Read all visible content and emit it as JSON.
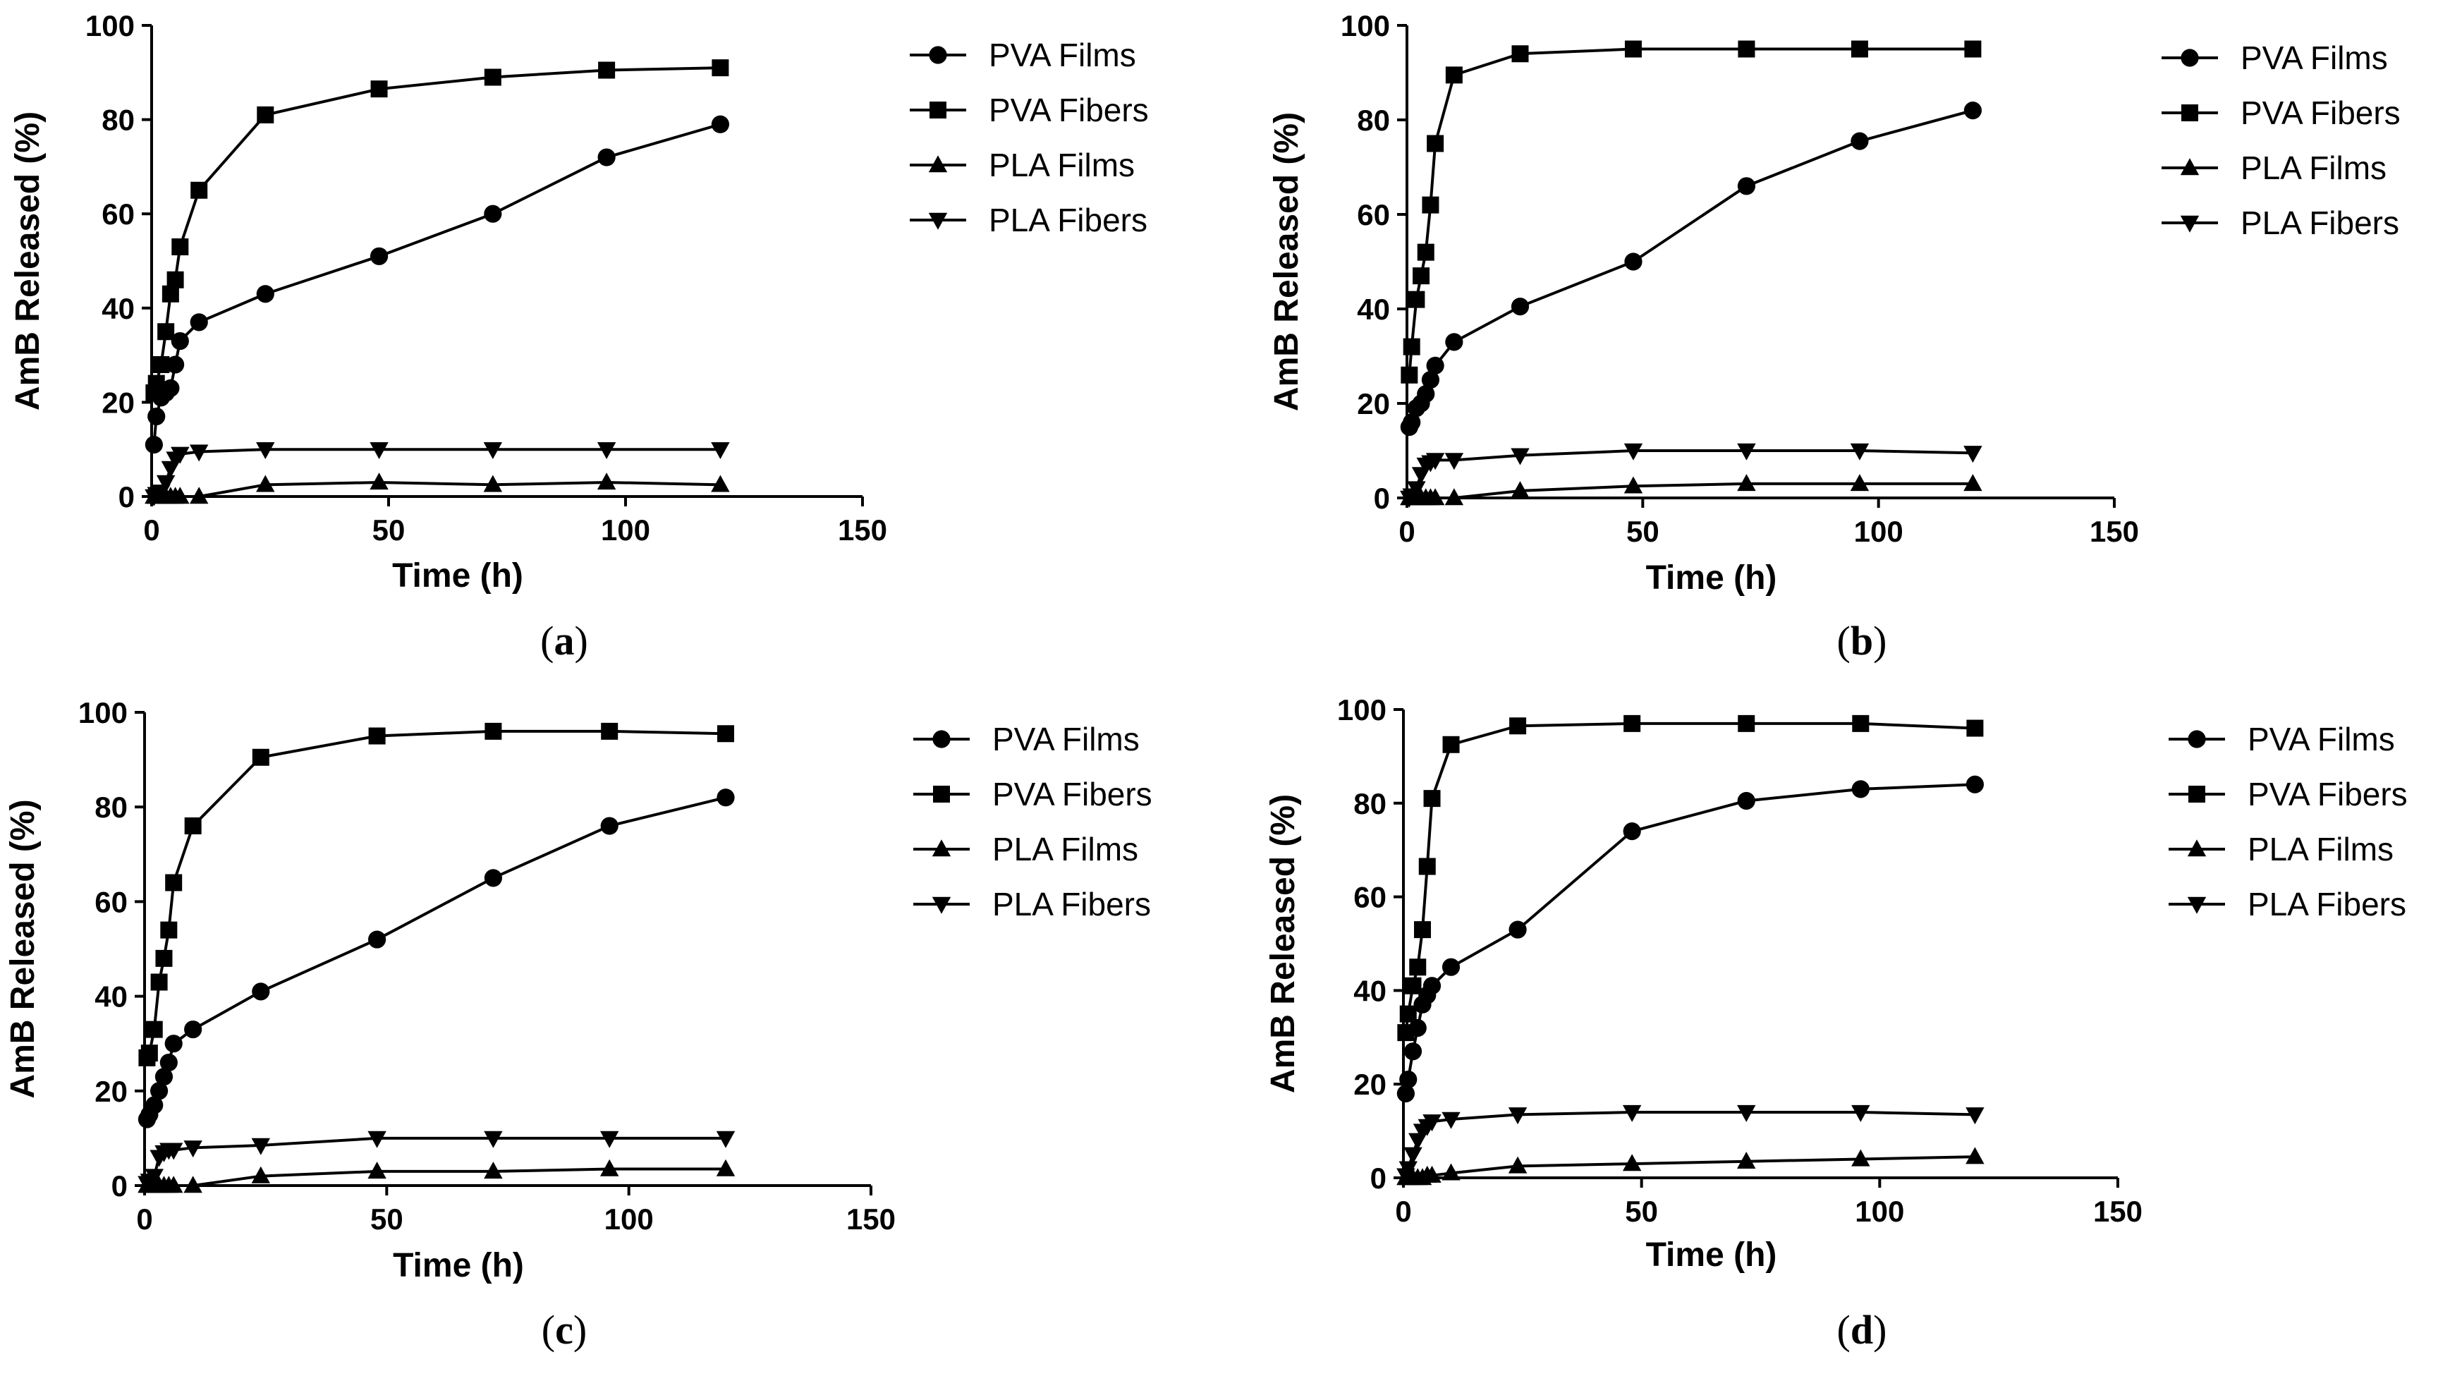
{
  "chart_data": [
    {
      "panel_label": "(a)",
      "panel_letter": "a",
      "type": "line",
      "xlabel": "Time (h)",
      "ylabel": "AmB Released (%)",
      "xlim": [
        0,
        150
      ],
      "ylim": [
        0,
        100
      ],
      "xticks": [
        0,
        50,
        100,
        150
      ],
      "yticks": [
        0,
        20,
        40,
        60,
        80,
        100
      ],
      "legend_position": "right",
      "series": [
        {
          "name": "PVA Films",
          "marker": "circle",
          "x": [
            0.5,
            1,
            2,
            3,
            4,
            5,
            6,
            10,
            24,
            48,
            72,
            96,
            120
          ],
          "y": [
            11,
            17,
            21,
            22,
            23,
            28,
            33,
            37,
            43,
            51,
            60,
            72,
            79
          ]
        },
        {
          "name": "PVA Fibers",
          "marker": "square",
          "x": [
            0.5,
            1,
            2,
            3,
            4,
            5,
            6,
            10,
            24,
            48,
            72,
            96,
            120
          ],
          "y": [
            22,
            24,
            28,
            35,
            43,
            46,
            53,
            65,
            81,
            86.5,
            89,
            90.5,
            91
          ]
        },
        {
          "name": "PLA Films",
          "marker": "triangle-up",
          "x": [
            0.5,
            1,
            2,
            3,
            4,
            5,
            6,
            10,
            24,
            48,
            72,
            96,
            120
          ],
          "y": [
            0,
            0,
            0,
            0,
            0,
            0,
            0,
            0,
            2.5,
            3,
            2.5,
            3,
            2.5
          ]
        },
        {
          "name": "PLA Fibers",
          "marker": "triangle-down",
          "x": [
            0.5,
            1,
            2,
            3,
            4,
            5,
            6,
            10,
            24,
            48,
            72,
            96,
            120
          ],
          "y": [
            0,
            0.5,
            1,
            3,
            6,
            8,
            9,
            9.5,
            10,
            10,
            10,
            10,
            10
          ]
        }
      ]
    },
    {
      "panel_label": "(b)",
      "panel_letter": "b",
      "type": "line",
      "xlabel": "Time (h)",
      "ylabel": "AmB Released (%)",
      "xlim": [
        0,
        150
      ],
      "ylim": [
        0,
        100
      ],
      "xticks": [
        0,
        50,
        100,
        150
      ],
      "yticks": [
        0,
        20,
        40,
        60,
        80,
        100
      ],
      "legend_position": "right",
      "series": [
        {
          "name": "PVA Films",
          "marker": "circle",
          "x": [
            0.5,
            1,
            2,
            3,
            4,
            5,
            6,
            10,
            24,
            48,
            72,
            96,
            120
          ],
          "y": [
            15,
            16,
            19,
            20,
            22,
            25,
            28,
            33,
            40.5,
            50,
            66,
            75.5,
            82
          ]
        },
        {
          "name": "PVA Fibers",
          "marker": "square",
          "x": [
            0.5,
            1,
            2,
            3,
            4,
            5,
            6,
            10,
            24,
            48,
            72,
            96,
            120
          ],
          "y": [
            26,
            32,
            42,
            47,
            52,
            62,
            75,
            89.5,
            94,
            95,
            95,
            95,
            95
          ]
        },
        {
          "name": "PLA Films",
          "marker": "triangle-up",
          "x": [
            0.5,
            1,
            2,
            3,
            4,
            5,
            6,
            10,
            24,
            48,
            72,
            96,
            120
          ],
          "y": [
            0,
            0,
            0,
            0,
            0,
            0,
            0,
            0,
            1.5,
            2.5,
            3,
            3,
            3
          ]
        },
        {
          "name": "PLA Fibers",
          "marker": "triangle-down",
          "x": [
            0.5,
            1,
            2,
            3,
            4,
            5,
            6,
            10,
            24,
            48,
            72,
            96,
            120
          ],
          "y": [
            0,
            0.5,
            2,
            5,
            7,
            7.5,
            8,
            8,
            9,
            10,
            10,
            10,
            9.5
          ]
        }
      ]
    },
    {
      "panel_label": "(c)",
      "panel_letter": "c",
      "type": "line",
      "xlabel": "Time (h)",
      "ylabel": "AmB Released (%)",
      "xlim": [
        0,
        150
      ],
      "ylim": [
        0,
        100
      ],
      "xticks": [
        0,
        50,
        100,
        150
      ],
      "yticks": [
        0,
        20,
        40,
        60,
        80,
        100
      ],
      "legend_position": "right",
      "series": [
        {
          "name": "PVA Films",
          "marker": "circle",
          "x": [
            0.5,
            1,
            2,
            3,
            4,
            5,
            6,
            10,
            24,
            48,
            72,
            96,
            120
          ],
          "y": [
            14,
            15,
            17,
            20,
            23,
            26,
            30,
            33,
            41,
            52,
            65,
            76,
            82
          ]
        },
        {
          "name": "PVA Fibers",
          "marker": "square",
          "x": [
            0.5,
            1,
            2,
            3,
            4,
            5,
            6,
            10,
            24,
            48,
            72,
            96,
            120
          ],
          "y": [
            27,
            28,
            33,
            43,
            48,
            54,
            64,
            76,
            90.5,
            95,
            96,
            96,
            95.5
          ]
        },
        {
          "name": "PLA Films",
          "marker": "triangle-up",
          "x": [
            0.5,
            1,
            2,
            3,
            4,
            5,
            6,
            10,
            24,
            48,
            72,
            96,
            120
          ],
          "y": [
            0,
            0,
            0,
            0,
            0,
            0,
            0,
            0,
            2,
            3,
            3,
            3.5,
            3.5
          ]
        },
        {
          "name": "PLA Fibers",
          "marker": "triangle-down",
          "x": [
            0.5,
            1,
            2,
            3,
            4,
            5,
            6,
            10,
            24,
            48,
            72,
            96,
            120
          ],
          "y": [
            0.5,
            1,
            2,
            6,
            7,
            7.5,
            7.5,
            8,
            8.5,
            10,
            10,
            10,
            10
          ]
        }
      ]
    },
    {
      "panel_label": "(d)",
      "panel_letter": "d",
      "type": "line",
      "xlabel": "Time (h)",
      "ylabel": "AmB Released (%)",
      "xlim": [
        0,
        150
      ],
      "ylim": [
        0,
        100
      ],
      "xticks": [
        0,
        50,
        100,
        150
      ],
      "yticks": [
        0,
        20,
        40,
        60,
        80,
        100
      ],
      "legend_position": "right",
      "series": [
        {
          "name": "PVA Films",
          "marker": "circle",
          "x": [
            0.5,
            1,
            2,
            3,
            4,
            5,
            6,
            10,
            24,
            48,
            72,
            96,
            120
          ],
          "y": [
            18,
            21,
            27,
            32,
            37,
            39,
            41,
            45,
            53,
            74,
            80.5,
            83,
            84
          ]
        },
        {
          "name": "PVA Fibers",
          "marker": "square",
          "x": [
            0.5,
            1,
            2,
            3,
            4,
            5,
            6,
            10,
            24,
            48,
            72,
            96,
            120
          ],
          "y": [
            31,
            35,
            41,
            45,
            53,
            66.5,
            81,
            92.5,
            96.5,
            97,
            97,
            97,
            96
          ]
        },
        {
          "name": "PLA Films",
          "marker": "triangle-up",
          "x": [
            0.5,
            1,
            2,
            3,
            4,
            5,
            6,
            10,
            24,
            48,
            72,
            96,
            120
          ],
          "y": [
            0,
            0,
            0,
            0,
            0,
            0.5,
            0.5,
            1,
            2.5,
            3,
            3.5,
            4,
            4.5
          ]
        },
        {
          "name": "PLA Fibers",
          "marker": "triangle-down",
          "x": [
            0.5,
            1,
            2,
            3,
            4,
            5,
            6,
            10,
            24,
            48,
            72,
            96,
            120
          ],
          "y": [
            0.5,
            2,
            5,
            8,
            10,
            11,
            12,
            12.5,
            13.5,
            14,
            14,
            14,
            13.5
          ]
        }
      ]
    }
  ]
}
